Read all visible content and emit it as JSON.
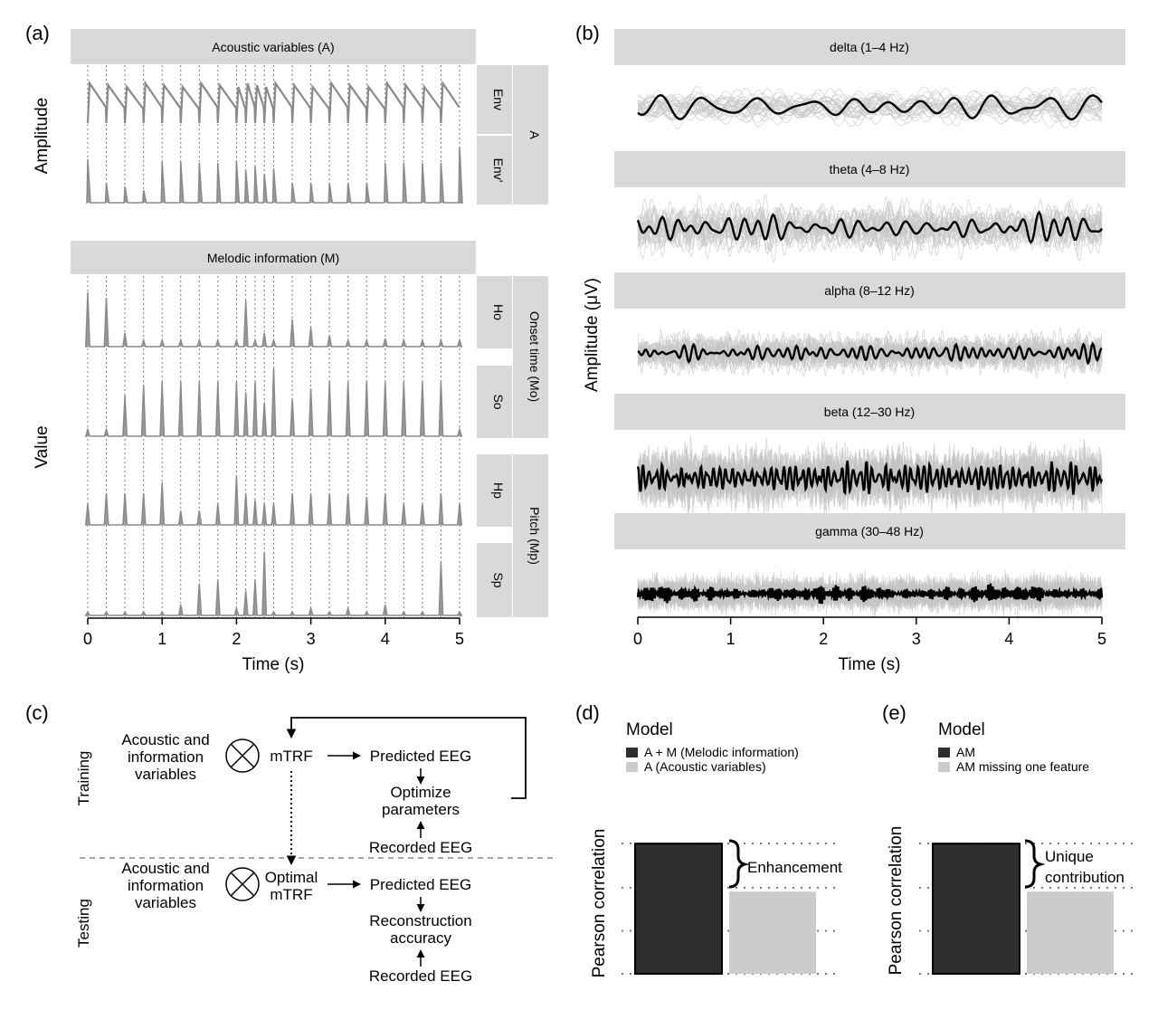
{
  "panel_a": {
    "letter": "(a)",
    "acoustic_header": "Acoustic variables (A)",
    "acoustic_rows": [
      "Env",
      "Env'"
    ],
    "acoustic_group": "A",
    "melodic_header": "Melodic information (M)",
    "melodic_rows": [
      "Ho",
      "So",
      "Hp",
      "Sp"
    ],
    "onset_group": "Onset time (Mo)",
    "pitch_group": "Pitch (Mp)",
    "ylabel_top": "Amplitude",
    "ylabel_bottom": "Value",
    "xlabel": "Time (s)",
    "x_ticks": [
      "0",
      "1",
      "2",
      "3",
      "4",
      "5"
    ]
  },
  "panel_b": {
    "letter": "(b)",
    "bands": [
      "delta (1–4 Hz)",
      "theta (4–8 Hz)",
      "alpha (8–12 Hz)",
      "beta (12–30 Hz)",
      "gamma (30–48 Hz)"
    ],
    "ylabel": "Amplitude (μV)",
    "xlabel": "Time (s)",
    "x_ticks": [
      "0",
      "1",
      "2",
      "3",
      "4",
      "5"
    ]
  },
  "panel_c": {
    "letter": "(c)",
    "training_label": "Training",
    "testing_label": "Testing",
    "train_inputs": [
      "Acoustic and",
      "information",
      "variables"
    ],
    "train_model": "mTRF",
    "train_predicted": "Predicted EEG",
    "train_optimize": [
      "Optimize",
      "parameters"
    ],
    "train_recorded": "Recorded EEG",
    "test_inputs": [
      "Acoustic and",
      "information",
      "variables"
    ],
    "test_model": [
      "Optimal",
      "mTRF"
    ],
    "test_predicted": "Predicted EEG",
    "test_accuracy": [
      "Reconstruction",
      "accuracy"
    ],
    "test_recorded": "Recorded EEG"
  },
  "panel_d": {
    "letter": "(d)",
    "legend_title": "Model",
    "legend_items": [
      "A + M (Melodic information)",
      "A (Acoustic variables)"
    ],
    "ylabel": "Pearson correlation",
    "annotation": "Enhancement"
  },
  "panel_e": {
    "letter": "(e)",
    "legend_title": "Model",
    "legend_items": [
      "AM",
      "AM missing one feature"
    ],
    "ylabel": "Pearson correlation",
    "annotation": [
      "Unique",
      "contribution"
    ]
  },
  "colors": {
    "strip": "#d9d9d9",
    "trace_grey": "#8a8a8a",
    "eeg_grey": "#c4c4c4",
    "eeg_mean": "#000000",
    "bar_dark": "#2e2e2e",
    "bar_light": "#cccccc",
    "dotted": "#777777"
  },
  "chart_data": [
    {
      "type": "line",
      "panel": "a",
      "x_range": [
        0,
        5
      ],
      "note_onsets_s": [
        0.0,
        0.25,
        0.5,
        0.75,
        1.0,
        1.25,
        1.5,
        1.75,
        2.0,
        2.125,
        2.25,
        2.375,
        2.5,
        2.75,
        3.0,
        3.25,
        3.5,
        3.75,
        4.0,
        4.25,
        4.5,
        4.75,
        5.0
      ],
      "series": [
        {
          "name": "Env"
        },
        {
          "name": "Env'"
        },
        {
          "name": "Ho",
          "peaks": [
            1.0,
            0.9,
            0.25,
            0.12,
            0.12,
            0.12,
            0.12,
            0.12,
            0.12,
            0.85,
            0.12,
            0.25,
            0.12,
            0.5,
            0.35,
            0.2,
            0.12,
            0.12,
            0.15,
            0.12,
            0.12,
            0.12,
            0.12
          ]
        },
        {
          "name": "So",
          "peaks": [
            0.1,
            0.1,
            0.6,
            0.75,
            0.8,
            0.8,
            0.8,
            0.8,
            0.8,
            0.65,
            0.8,
            0.5,
            1.0,
            0.55,
            0.7,
            0.8,
            0.8,
            0.8,
            0.8,
            0.8,
            0.8,
            0.8,
            0.1
          ]
        },
        {
          "name": "Hp",
          "peaks": [
            0.3,
            0.45,
            0.45,
            0.45,
            0.6,
            0.2,
            0.2,
            0.3,
            0.7,
            0.45,
            0.35,
            0.3,
            0.3,
            0.45,
            0.45,
            0.45,
            0.45,
            0.4,
            0.45,
            0.3,
            0.3,
            0.45,
            0.3
          ]
        },
        {
          "name": "Sp",
          "peaks": [
            0.05,
            0.05,
            0.05,
            0.05,
            0.05,
            0.15,
            0.45,
            0.5,
            0.1,
            0.35,
            0.5,
            0.9,
            0.05,
            0.05,
            0.1,
            0.05,
            0.1,
            0.05,
            0.15,
            0.05,
            0.05,
            0.75,
            0.05
          ]
        }
      ]
    },
    {
      "type": "line",
      "panel": "b",
      "x_range": [
        0,
        5
      ],
      "series": [
        {
          "name": "delta (1–4 Hz)"
        },
        {
          "name": "theta (4–8 Hz)"
        },
        {
          "name": "alpha (8–12 Hz)"
        },
        {
          "name": "beta (12–30 Hz)"
        },
        {
          "name": "gamma (30–48 Hz)"
        }
      ]
    },
    {
      "type": "bar",
      "panel": "d",
      "categories": [
        "A + M (Melodic information)",
        "A (Acoustic variables)"
      ],
      "values": [
        0.95,
        0.6
      ],
      "ylabel": "Pearson correlation"
    },
    {
      "type": "bar",
      "panel": "e",
      "categories": [
        "AM",
        "AM missing one feature"
      ],
      "values": [
        0.95,
        0.6
      ],
      "ylabel": "Pearson correlation"
    }
  ]
}
